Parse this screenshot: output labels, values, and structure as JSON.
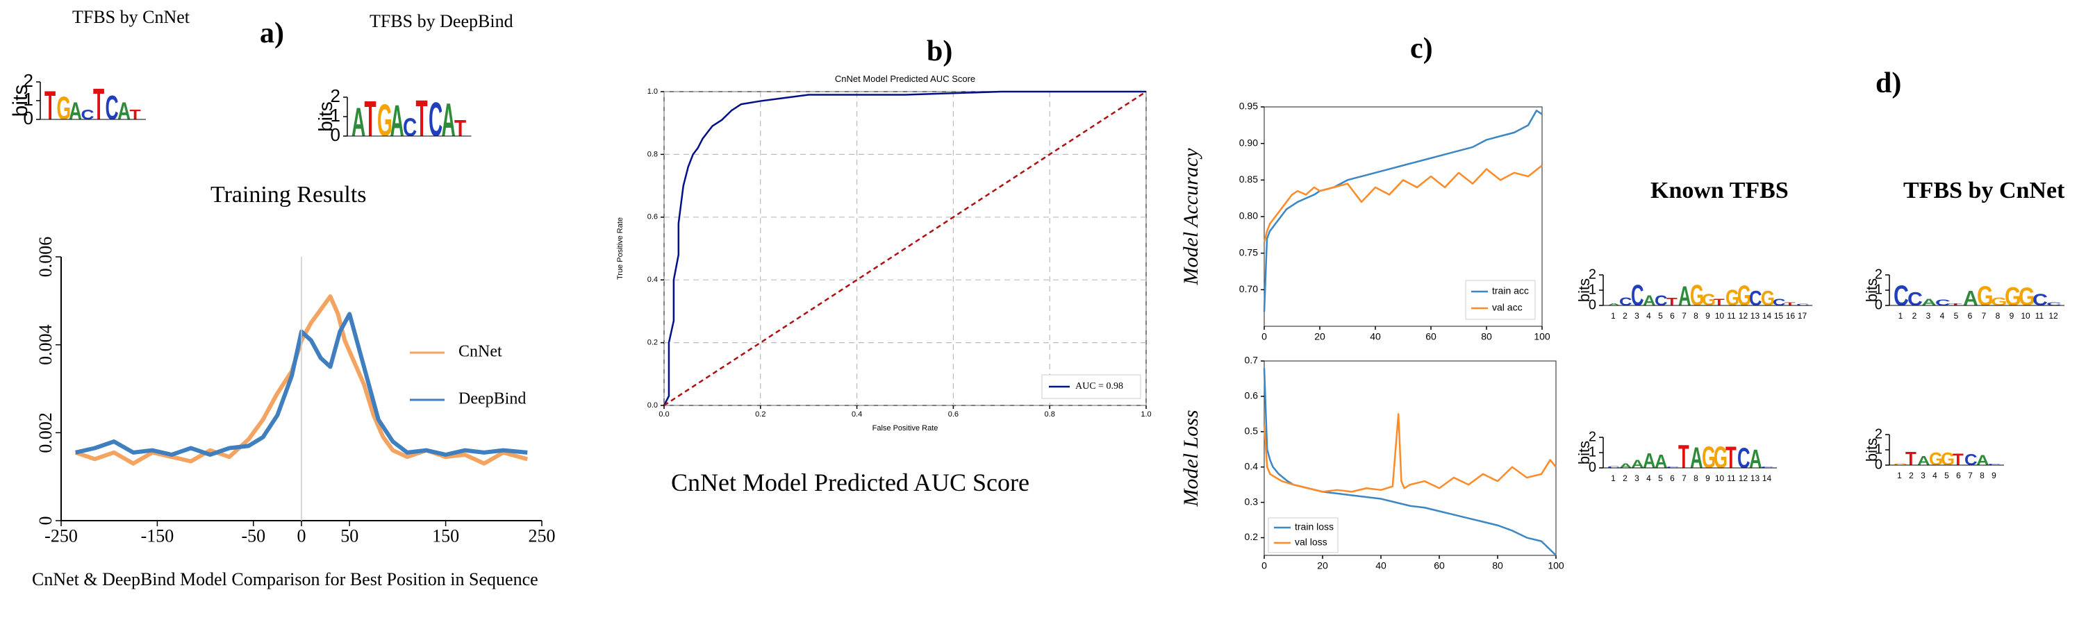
{
  "panel_letters": {
    "a": "a)",
    "b": "b)",
    "c": "c)",
    "d": "d)"
  },
  "colors": {
    "A": "#2e8b3a",
    "C": "#1f3fbf",
    "G": "#f4a300",
    "T": "#e01010",
    "cnnet": "#f4a460",
    "deepbind": "#3f7fbf",
    "roc": "#00108a",
    "diag": "#b01010",
    "train": "#3b86c4",
    "val": "#ff8a28"
  },
  "logos": {
    "cnnet_a": {
      "title": "TFBS by CnNet",
      "ylabel": "bits",
      "yticks": [
        "2",
        "1",
        "0"
      ],
      "letters": [
        {
          "c": "T",
          "h": 1.55
        },
        {
          "c": "G",
          "h": 1.25
        },
        {
          "c": "A",
          "h": 0.95
        },
        {
          "c": "C",
          "h": 0.55
        },
        {
          "c": "T",
          "h": 1.7
        },
        {
          "c": "C",
          "h": 1.3
        },
        {
          "c": "A",
          "h": 0.95
        },
        {
          "c": "T",
          "h": 0.55
        }
      ]
    },
    "deepbind_a": {
      "title": "TFBS by DeepBind",
      "ylabel": "bits",
      "yticks": [
        "2",
        "1",
        "0"
      ],
      "letters": [
        {
          "c": "A",
          "h": 1.5
        },
        {
          "c": "T",
          "h": 1.85
        },
        {
          "c": "G",
          "h": 1.7
        },
        {
          "c": "A",
          "h": 1.65
        },
        {
          "c": "C",
          "h": 0.95
        },
        {
          "c": "T",
          "h": 1.9
        },
        {
          "c": "C",
          "h": 1.8
        },
        {
          "c": "A",
          "h": 1.75
        },
        {
          "c": "T",
          "h": 0.85
        }
      ]
    },
    "known1": {
      "ylabel": "bits",
      "yticks": [
        "2",
        "1",
        "0"
      ],
      "letters": [
        {
          "c": "A",
          "h": 0.15
        },
        {
          "c": "C",
          "h": 0.55
        },
        {
          "c": "C",
          "h": 1.4
        },
        {
          "c": "A",
          "h": 0.7
        },
        {
          "c": "C",
          "h": 0.7
        },
        {
          "c": "T",
          "h": 0.5
        },
        {
          "c": "A",
          "h": 1.3
        },
        {
          "c": "G",
          "h": 1.4
        },
        {
          "c": "G",
          "h": 0.8
        },
        {
          "c": "T",
          "h": 0.45
        },
        {
          "c": "G",
          "h": 1.05
        },
        {
          "c": "G",
          "h": 1.35
        },
        {
          "c": "C",
          "h": 1.0
        },
        {
          "c": "G",
          "h": 1.0
        },
        {
          "c": "C",
          "h": 0.45
        },
        {
          "c": "T",
          "h": 0.2
        },
        {
          "c": "C",
          "h": 0.12
        }
      ],
      "xticks": [
        "1",
        "2",
        "3",
        "4",
        "5",
        "6",
        "7",
        "8",
        "9",
        "10",
        "11",
        "12",
        "13",
        "14",
        "15",
        "16",
        "17"
      ]
    },
    "cnnet1": {
      "title": "TFBS by CnNet",
      "ylabel": "bits",
      "yticks": [
        "2",
        "1",
        "0"
      ],
      "letters": [
        {
          "c": "C",
          "h": 1.35
        },
        {
          "c": "C",
          "h": 0.9
        },
        {
          "c": "A",
          "h": 0.45
        },
        {
          "c": "C",
          "h": 0.4
        },
        {
          "c": "T",
          "h": 0.15
        },
        {
          "c": "A",
          "h": 1.0
        },
        {
          "c": "G",
          "h": 1.3
        },
        {
          "c": "G",
          "h": 0.55
        },
        {
          "c": "G",
          "h": 1.25
        },
        {
          "c": "G",
          "h": 1.2
        },
        {
          "c": "C",
          "h": 0.8
        },
        {
          "c": "C",
          "h": 0.2
        }
      ],
      "xticks": [
        "1",
        "2",
        "3",
        "4",
        "5",
        "6",
        "7",
        "8",
        "9",
        "10",
        "11",
        "12"
      ]
    },
    "known2": {
      "ylabel": "bits",
      "yticks": [
        "2",
        "1",
        "0"
      ],
      "letters": [
        {
          "c": "C",
          "h": 0.12
        },
        {
          "c": "A",
          "h": 0.3
        },
        {
          "c": "A",
          "h": 0.55
        },
        {
          "c": "A",
          "h": 1.0
        },
        {
          "c": "A",
          "h": 0.9
        },
        {
          "c": "C",
          "h": 0.1
        },
        {
          "c": "T",
          "h": 1.55
        },
        {
          "c": "A",
          "h": 1.4
        },
        {
          "c": "G",
          "h": 1.45
        },
        {
          "c": "G",
          "h": 1.45
        },
        {
          "c": "T",
          "h": 1.45
        },
        {
          "c": "C",
          "h": 1.35
        },
        {
          "c": "A",
          "h": 1.25
        },
        {
          "c": "C",
          "h": 0.1
        }
      ],
      "xticks": [
        "1",
        "2",
        "3",
        "4",
        "5",
        "6",
        "7",
        "8",
        "9",
        "10",
        "11",
        "12",
        "13",
        "14"
      ]
    },
    "cnnet2": {
      "ylabel": "bits",
      "yticks": [
        "2",
        "1",
        "0"
      ],
      "letters": [
        {
          "c": "G",
          "h": 0.12
        },
        {
          "c": "T",
          "h": 0.9
        },
        {
          "c": "A",
          "h": 0.6
        },
        {
          "c": "G",
          "h": 0.85
        },
        {
          "c": "G",
          "h": 0.85
        },
        {
          "c": "T",
          "h": 0.8
        },
        {
          "c": "C",
          "h": 0.75
        },
        {
          "c": "A",
          "h": 0.7
        },
        {
          "c": "C",
          "h": 0.1
        }
      ],
      "xticks": [
        "1",
        "2",
        "3",
        "4",
        "5",
        "6",
        "7",
        "8",
        "9"
      ]
    }
  },
  "chart_data": [
    {
      "type": "line",
      "title": "Training Results",
      "caption": "CnNet & DeepBind Model Comparison for Best Position in Sequence",
      "xlim": [
        -250,
        250
      ],
      "ylim": [
        0,
        0.006
      ],
      "xticks": [
        "-250",
        "-150",
        "-50",
        "0",
        "50",
        "150",
        "250"
      ],
      "yticks": [
        "0",
        "0.002",
        "0.004",
        "0.006"
      ],
      "legend_position": "right",
      "series": [
        {
          "name": "CnNet",
          "x": [
            -235,
            -215,
            -195,
            -175,
            -155,
            -135,
            -115,
            -95,
            -75,
            -55,
            -40,
            -25,
            -10,
            0,
            10,
            20,
            30,
            38,
            45,
            55,
            65,
            75,
            85,
            95,
            110,
            130,
            150,
            170,
            190,
            210,
            235
          ],
          "y": [
            0.00155,
            0.0014,
            0.00155,
            0.0013,
            0.00155,
            0.00145,
            0.00135,
            0.0016,
            0.00145,
            0.00185,
            0.0023,
            0.0029,
            0.0034,
            0.0041,
            0.0045,
            0.0048,
            0.0051,
            0.0047,
            0.0041,
            0.0036,
            0.0031,
            0.0024,
            0.0019,
            0.0016,
            0.00145,
            0.0016,
            0.00145,
            0.0015,
            0.0013,
            0.00155,
            0.0014
          ]
        },
        {
          "name": "DeepBind",
          "x": [
            -235,
            -215,
            -195,
            -175,
            -155,
            -135,
            -115,
            -95,
            -75,
            -55,
            -40,
            -25,
            -10,
            0,
            10,
            20,
            30,
            40,
            50,
            60,
            70,
            80,
            95,
            110,
            130,
            150,
            170,
            190,
            210,
            235
          ],
          "y": [
            0.00155,
            0.00165,
            0.0018,
            0.00155,
            0.0016,
            0.0015,
            0.00165,
            0.0015,
            0.00165,
            0.0017,
            0.0019,
            0.0024,
            0.0033,
            0.0043,
            0.0041,
            0.0037,
            0.0035,
            0.0043,
            0.0047,
            0.0039,
            0.0031,
            0.0023,
            0.0018,
            0.00155,
            0.0016,
            0.0015,
            0.0016,
            0.00155,
            0.0016,
            0.00155
          ]
        }
      ]
    },
    {
      "type": "line",
      "title": "CnNet Model Predicted AUC Score",
      "caption": "CnNet Model Predicted AUC Score",
      "xlabel": "False Positive Rate",
      "ylabel": "True Positive Rate",
      "xlim": [
        0,
        1
      ],
      "ylim": [
        0,
        1
      ],
      "xticks": [
        "0.0",
        "0.2",
        "0.4",
        "0.6",
        "0.8",
        "1.0"
      ],
      "yticks": [
        "0.0",
        "0.2",
        "0.4",
        "0.6",
        "0.8",
        "1.0"
      ],
      "grid": true,
      "legend_position": "bottom-right",
      "series": [
        {
          "name": "AUC = 0.98",
          "x": [
            0,
            0.01,
            0.01,
            0.02,
            0.02,
            0.03,
            0.03,
            0.035,
            0.04,
            0.045,
            0.05,
            0.055,
            0.06,
            0.07,
            0.08,
            0.09,
            0.1,
            0.12,
            0.14,
            0.16,
            0.2,
            0.25,
            0.3,
            0.5,
            0.7,
            0.9,
            1.0
          ],
          "y": [
            0,
            0.03,
            0.2,
            0.27,
            0.4,
            0.48,
            0.58,
            0.64,
            0.7,
            0.73,
            0.76,
            0.78,
            0.8,
            0.82,
            0.85,
            0.87,
            0.89,
            0.91,
            0.94,
            0.96,
            0.97,
            0.98,
            0.99,
            0.99,
            1.0,
            1.0,
            1.0
          ]
        },
        {
          "name": "",
          "x": [
            0,
            1
          ],
          "y": [
            0,
            1
          ]
        }
      ]
    },
    {
      "type": "line",
      "ylabel": "Model Accuracy",
      "xlim": [
        0,
        100
      ],
      "ylim": [
        0.65,
        0.95
      ],
      "xticks": [
        "0",
        "20",
        "40",
        "60",
        "80",
        "100"
      ],
      "yticks": [
        "0.70",
        "0.75",
        "0.80",
        "0.85",
        "0.90",
        "0.95"
      ],
      "legend_position": "bottom-right",
      "series": [
        {
          "name": "train acc",
          "x": [
            0,
            1,
            2,
            4,
            6,
            8,
            10,
            12,
            15,
            18,
            20,
            25,
            30,
            35,
            40,
            45,
            50,
            55,
            60,
            65,
            70,
            75,
            80,
            85,
            90,
            95,
            98,
            100
          ],
          "y": [
            0.67,
            0.77,
            0.78,
            0.79,
            0.8,
            0.81,
            0.815,
            0.82,
            0.825,
            0.83,
            0.835,
            0.84,
            0.85,
            0.855,
            0.86,
            0.865,
            0.87,
            0.875,
            0.88,
            0.885,
            0.89,
            0.895,
            0.905,
            0.91,
            0.915,
            0.925,
            0.945,
            0.94
          ]
        },
        {
          "name": "val acc",
          "x": [
            0,
            1,
            2,
            4,
            6,
            8,
            10,
            12,
            15,
            18,
            20,
            25,
            30,
            35,
            40,
            45,
            50,
            55,
            60,
            65,
            70,
            75,
            80,
            85,
            90,
            95,
            100
          ],
          "y": [
            0.765,
            0.78,
            0.79,
            0.8,
            0.81,
            0.82,
            0.83,
            0.835,
            0.83,
            0.84,
            0.835,
            0.84,
            0.845,
            0.82,
            0.84,
            0.83,
            0.85,
            0.84,
            0.855,
            0.84,
            0.86,
            0.845,
            0.865,
            0.85,
            0.86,
            0.855,
            0.87
          ]
        }
      ]
    },
    {
      "type": "line",
      "ylabel": "Model Loss",
      "xlim": [
        0,
        100
      ],
      "ylim": [
        0.15,
        0.7
      ],
      "xticks": [
        "0",
        "20",
        "40",
        "60",
        "80",
        "100"
      ],
      "yticks": [
        "0.2",
        "0.3",
        "0.4",
        "0.5",
        "0.6",
        "0.7"
      ],
      "legend_position": "bottom-left",
      "series": [
        {
          "name": "train loss",
          "x": [
            0,
            1,
            2,
            3,
            5,
            8,
            10,
            15,
            20,
            25,
            30,
            35,
            40,
            45,
            50,
            55,
            60,
            65,
            70,
            75,
            80,
            85,
            90,
            95,
            100
          ],
          "y": [
            0.68,
            0.45,
            0.42,
            0.4,
            0.38,
            0.36,
            0.35,
            0.34,
            0.33,
            0.325,
            0.32,
            0.315,
            0.31,
            0.3,
            0.29,
            0.285,
            0.275,
            0.265,
            0.255,
            0.245,
            0.235,
            0.22,
            0.2,
            0.19,
            0.15
          ]
        },
        {
          "name": "val loss",
          "x": [
            0,
            1,
            2,
            4,
            6,
            8,
            10,
            15,
            20,
            25,
            30,
            35,
            40,
            44,
            46,
            47,
            48,
            50,
            55,
            60,
            65,
            70,
            75,
            80,
            85,
            90,
            95,
            98,
            100
          ],
          "y": [
            0.52,
            0.4,
            0.38,
            0.37,
            0.36,
            0.355,
            0.35,
            0.34,
            0.33,
            0.335,
            0.33,
            0.34,
            0.335,
            0.345,
            0.55,
            0.36,
            0.34,
            0.35,
            0.36,
            0.34,
            0.37,
            0.35,
            0.38,
            0.36,
            0.4,
            0.37,
            0.38,
            0.42,
            0.4
          ]
        }
      ]
    }
  ]
}
